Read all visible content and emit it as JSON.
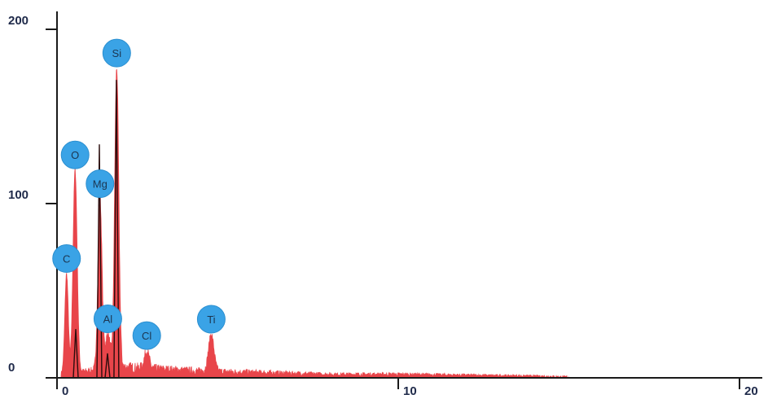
{
  "chart_data": {
    "type": "area",
    "title": "",
    "xlabel": "",
    "ylabel": "",
    "xlim": [
      0,
      20
    ],
    "ylim": [
      0,
      200
    ],
    "x_ticks": [
      0,
      10,
      20
    ],
    "x_tick_labels": [
      "0",
      "10",
      "20"
    ],
    "y_ticks": [
      0,
      100,
      200
    ],
    "y_tick_labels": [
      "0",
      "100",
      "200"
    ],
    "grid": false,
    "fill_color": "#e8454a",
    "line_color": "#2a0d0d",
    "label_color": "#3aa3e6",
    "peaks": [
      {
        "element": "C",
        "x": 0.28,
        "y": 57,
        "width": 0.05
      },
      {
        "element": "O",
        "x": 0.53,
        "y": 116,
        "width": 0.06
      },
      {
        "element": "Mg",
        "x": 1.26,
        "y": 98,
        "width": 0.06
      },
      {
        "element": "Al",
        "x": 1.49,
        "y": 20,
        "width": 0.07
      },
      {
        "element": "Si",
        "x": 1.75,
        "y": 172,
        "width": 0.06
      },
      {
        "element": "Cl",
        "x": 2.63,
        "y": 10,
        "width": 0.07
      },
      {
        "element": "Ti",
        "x": 4.52,
        "y": 21,
        "width": 0.08
      }
    ],
    "background_counts": [
      {
        "x": 0.0,
        "y": 2
      },
      {
        "x": 1.0,
        "y": 4
      },
      {
        "x": 2.0,
        "y": 6
      },
      {
        "x": 3.0,
        "y": 5
      },
      {
        "x": 4.0,
        "y": 4
      },
      {
        "x": 6.0,
        "y": 3
      },
      {
        "x": 8.0,
        "y": 2
      },
      {
        "x": 10.0,
        "y": 2
      },
      {
        "x": 12.0,
        "y": 1.5
      },
      {
        "x": 14.0,
        "y": 1
      },
      {
        "x": 15.0,
        "y": 0.5
      },
      {
        "x": 16.0,
        "y": 0
      },
      {
        "x": 20.0,
        "y": 0
      }
    ]
  }
}
